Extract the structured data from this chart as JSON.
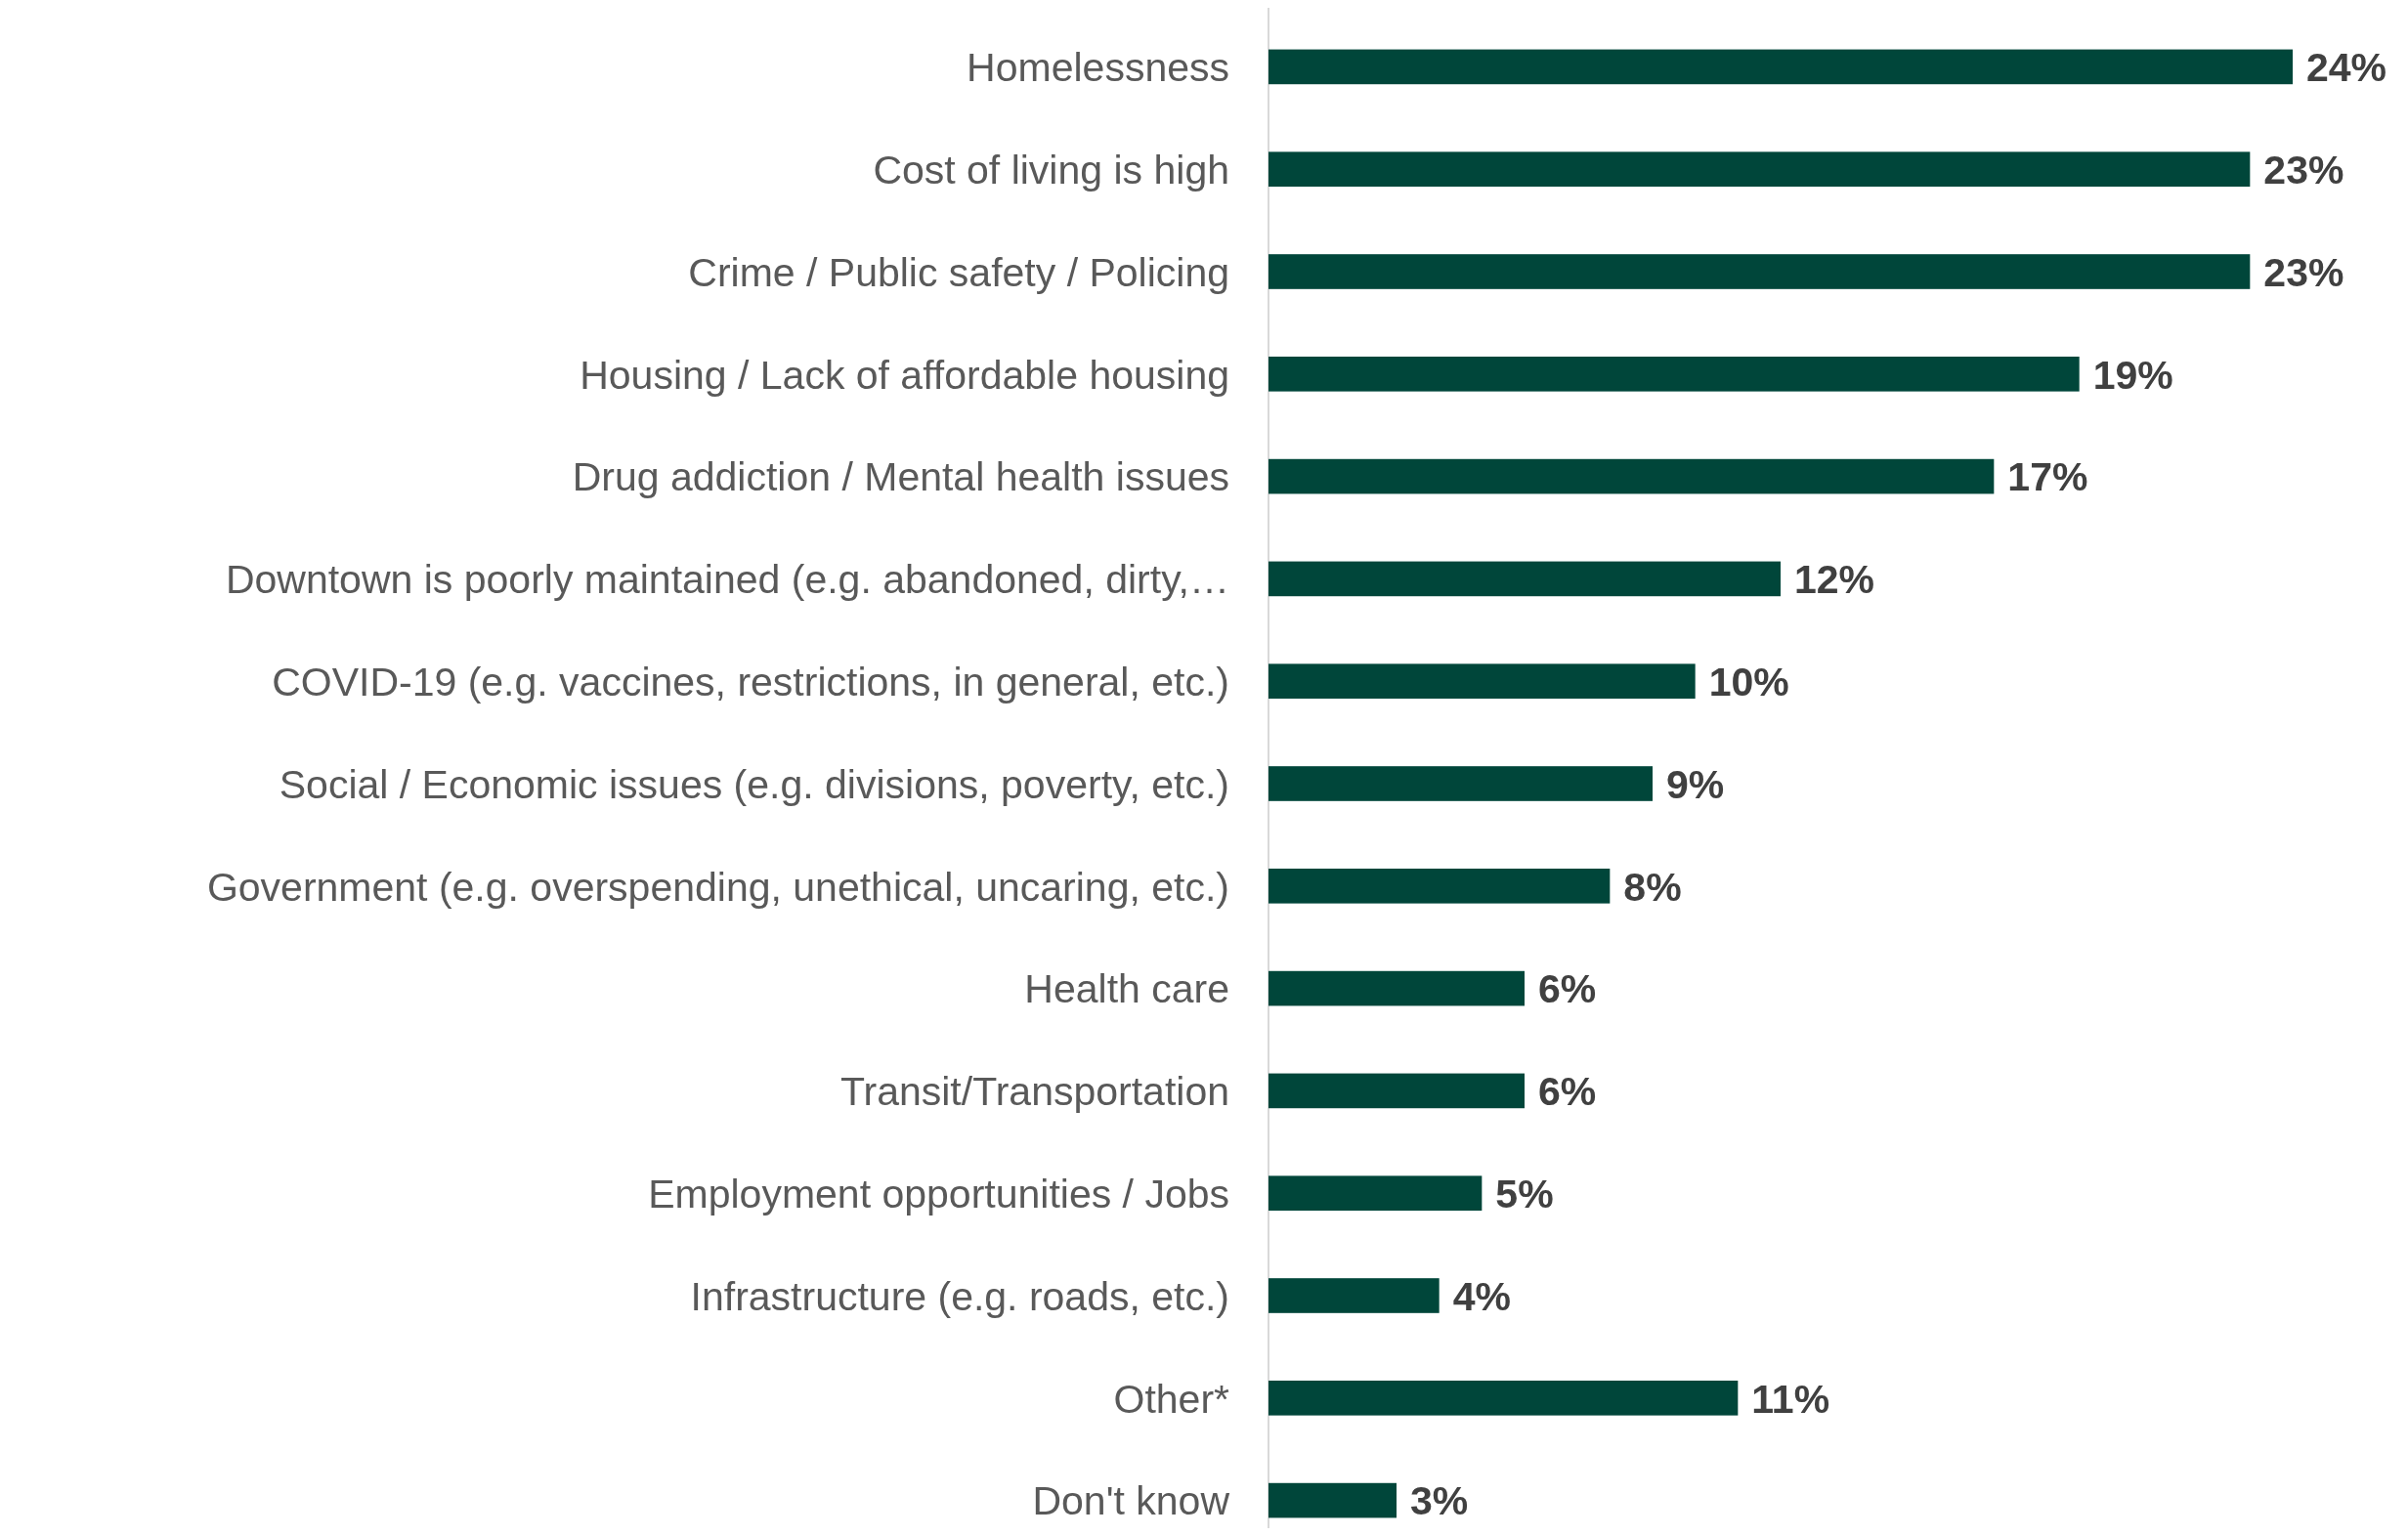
{
  "chart_data": {
    "type": "bar",
    "orientation": "horizontal",
    "color": "#00463a",
    "categories": [
      "Homelessness",
      "Cost of living is high",
      "Crime / Public safety / Policing",
      "Housing / Lack of affordable housing",
      "Drug addiction / Mental health issues",
      "Downtown is poorly maintained (e.g. abandoned, dirty,…",
      "COVID-19 (e.g. vaccines, restrictions, in general, etc.)",
      "Social / Economic issues (e.g. divisions, poverty, etc.)",
      "Government (e.g. overspending, unethical, uncaring, etc.)",
      "Health care",
      "Transit/Transportation",
      "Employment opportunities / Jobs",
      "Infrastructure (e.g. roads, etc.)",
      "Other*",
      "Don't know"
    ],
    "values": [
      24,
      23,
      23,
      19,
      17,
      12,
      10,
      9,
      8,
      6,
      6,
      5,
      4,
      11,
      3
    ],
    "value_labels": [
      "24%",
      "23%",
      "23%",
      "19%",
      "17%",
      "12%",
      "10%",
      "9%",
      "8%",
      "6%",
      "6%",
      "5%",
      "4%",
      "11%",
      "3%"
    ]
  }
}
